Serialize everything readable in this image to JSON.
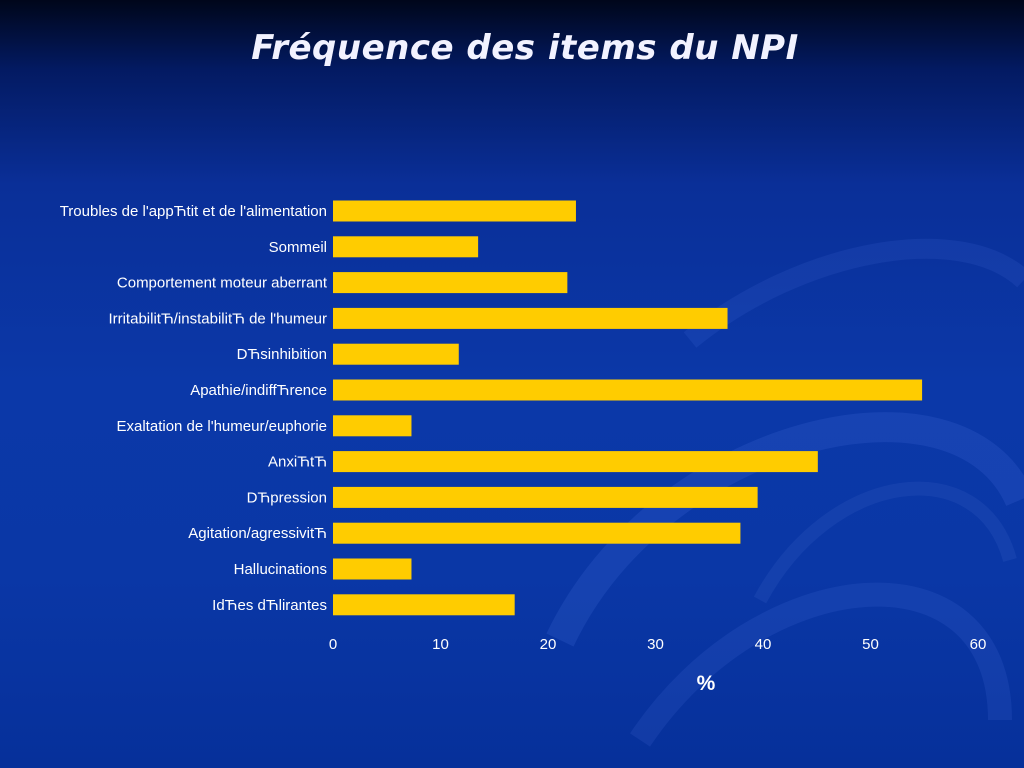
{
  "colors": {
    "bar": "#FFCC00",
    "title": "#F2F2FF",
    "text": "#FFFFFF"
  },
  "chart_data": {
    "type": "bar",
    "orientation": "horizontal",
    "title": "Fréquence des items du NPI",
    "categories": [
      "Troubles de l'appЋtit et de l'alimentation",
      "Sommeil",
      "Comportement moteur aberrant",
      "IrritabilitЋ/instabilitЋ de l'humeur",
      "DЋsinhibition",
      "Apathie/indiffЋrence",
      "Exaltation de l'humeur/euphorie",
      "AnxiЋtЋ",
      "DЋpression",
      "Agitation/agressivitЋ",
      "Hallucinations",
      "IdЋes dЋlirantes"
    ],
    "values": [
      22.6,
      13.5,
      21.8,
      36.7,
      11.7,
      54.8,
      7.3,
      45.1,
      39.5,
      37.9,
      7.3,
      16.9
    ],
    "xlabel": "%",
    "ylabel": "",
    "xlim": [
      0,
      60
    ],
    "xticks": [
      0,
      10,
      20,
      30,
      40,
      50,
      60
    ],
    "grid": false,
    "legend": "none"
  }
}
